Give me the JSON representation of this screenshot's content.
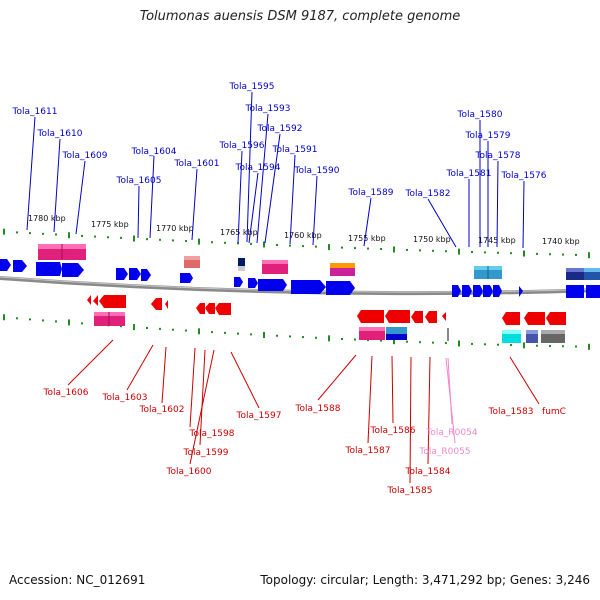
{
  "title": "Tolumonas auensis DSM 9187, complete genome",
  "accession": "Accession: NC_012691",
  "topology": "Topology: circular; Length: 3,471,292 bp; Genes: 3,246",
  "colors": {
    "upper_label": "#0000cc",
    "lower_label": "#cc0000",
    "rna_label": "#ee88cc",
    "upper_gene": "#0000ee",
    "lower_gene": "#ee0000",
    "tick": "#228b22",
    "backbone": "#888888"
  },
  "ruler_labels": [
    "1780 kbp",
    "1775 kbp",
    "1770 kbp",
    "1765 kbp",
    "1760 kbp",
    "1755 kbp",
    "1750 kbp",
    "1745 kbp",
    "1740 kbp"
  ],
  "upper_genes": [
    "Tola_1611",
    "Tola_1610",
    "Tola_1609",
    "Tola_1604",
    "Tola_1605",
    "Tola_1601",
    "Tola_1595",
    "Tola_1593",
    "Tola_1592",
    "Tola_1596",
    "Tola_1594",
    "Tola_1591",
    "Tola_1590",
    "Tola_1589",
    "Tola_1582",
    "Tola_1580",
    "Tola_1579",
    "Tola_1578",
    "Tola_1581",
    "Tola_1576"
  ],
  "lower_genes": [
    "Tola_1606",
    "Tola_1603",
    "Tola_1602",
    "Tola_1598",
    "Tola_1599",
    "Tola_1600",
    "Tola_1597",
    "Tola_1588",
    "Tola_1586",
    "Tola_1587",
    "Tola_1584",
    "Tola_1585",
    "Tola_1583",
    "fumC"
  ],
  "rna_genes": [
    "Tola_R0054",
    "Tola_R0055"
  ]
}
